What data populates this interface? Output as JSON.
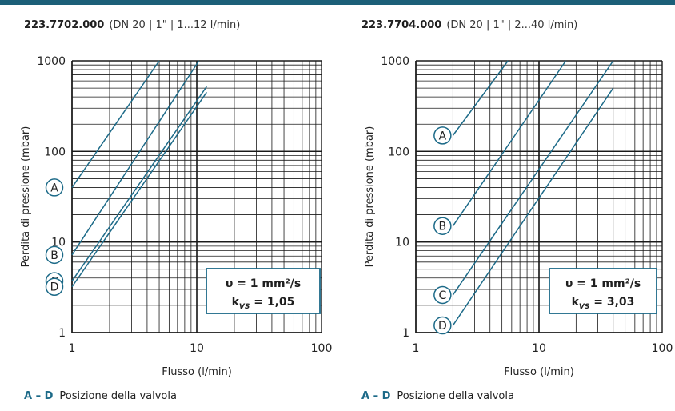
{
  "colors": {
    "accent": "#1c6a88",
    "line": "#1c6a88",
    "grid": "#1a1a1a",
    "bar": "#1c5f78"
  },
  "chart_data": [
    {
      "type": "line",
      "title": "223.7702.000",
      "subtitle": "(DN 20 | 1\" | 1...12 l/min)",
      "xlabel": "Flusso (l/min)",
      "ylabel": "Perdita di pressione (mbar)",
      "x_scale": "log",
      "y_scale": "log",
      "xlim": [
        1,
        100
      ],
      "ylim": [
        1,
        1000
      ],
      "x_ticks": [
        "1",
        "10",
        "100"
      ],
      "y_ticks": [
        "1",
        "10",
        "100",
        "1000"
      ],
      "grid": true,
      "series": [
        {
          "name": "A",
          "x": [
            1,
            5
          ],
          "y": [
            40,
            1000
          ]
        },
        {
          "name": "B",
          "x": [
            1,
            10.4
          ],
          "y": [
            7.2,
            1000
          ]
        },
        {
          "name": "C",
          "x": [
            1,
            12
          ],
          "y": [
            3.7,
            520
          ]
        },
        {
          "name": "D",
          "x": [
            1,
            12
          ],
          "y": [
            3.2,
            450
          ]
        }
      ],
      "info_box": {
        "viscosity": "υ = 1 mm²/s",
        "kvs_label": "k",
        "kvs_sub": "VS",
        "kvs_value": " = 1,05"
      },
      "legend_note": {
        "range": "A – D",
        "text": "Posizione della valvola"
      }
    },
    {
      "type": "line",
      "title": "223.7704.000",
      "subtitle": "(DN 20 | 1\" | 2...40 l/min)",
      "xlabel": "Flusso (l/min)",
      "ylabel": "Perdita di pressione (mbar)",
      "x_scale": "log",
      "y_scale": "log",
      "xlim": [
        1,
        100
      ],
      "ylim": [
        1,
        1000
      ],
      "x_ticks": [
        "1",
        "10",
        "100"
      ],
      "y_ticks": [
        "1",
        "10",
        "100",
        "1000"
      ],
      "grid": true,
      "series": [
        {
          "name": "A",
          "x": [
            2,
            5.6
          ],
          "y": [
            150,
            1000
          ]
        },
        {
          "name": "B",
          "x": [
            2,
            16.5
          ],
          "y": [
            15,
            1000
          ]
        },
        {
          "name": "C",
          "x": [
            2,
            40
          ],
          "y": [
            2.6,
            1000
          ]
        },
        {
          "name": "D",
          "x": [
            2,
            40
          ],
          "y": [
            1.2,
            500
          ]
        }
      ],
      "info_box": {
        "viscosity": "υ = 1 mm²/s",
        "kvs_label": "k",
        "kvs_sub": "VS",
        "kvs_value": " = 3,03"
      },
      "legend_note": {
        "range": "A – D",
        "text": "Posizione della valvola"
      }
    }
  ]
}
